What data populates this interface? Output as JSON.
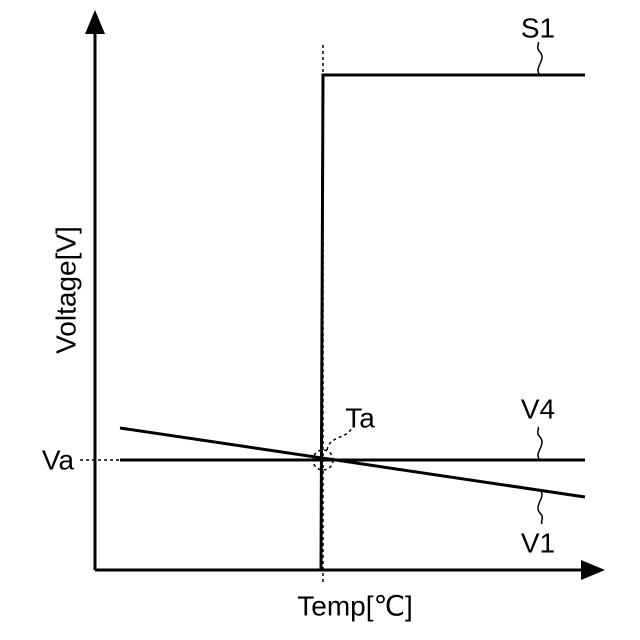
{
  "axes": {
    "y_label": "Voltage[V]",
    "x_label": "Temp[℃]"
  },
  "curves": [
    {
      "label": "S1"
    },
    {
      "label": "V4"
    },
    {
      "label": "V1"
    }
  ],
  "points": {
    "voltage": "Va",
    "temperature": "Ta"
  }
}
